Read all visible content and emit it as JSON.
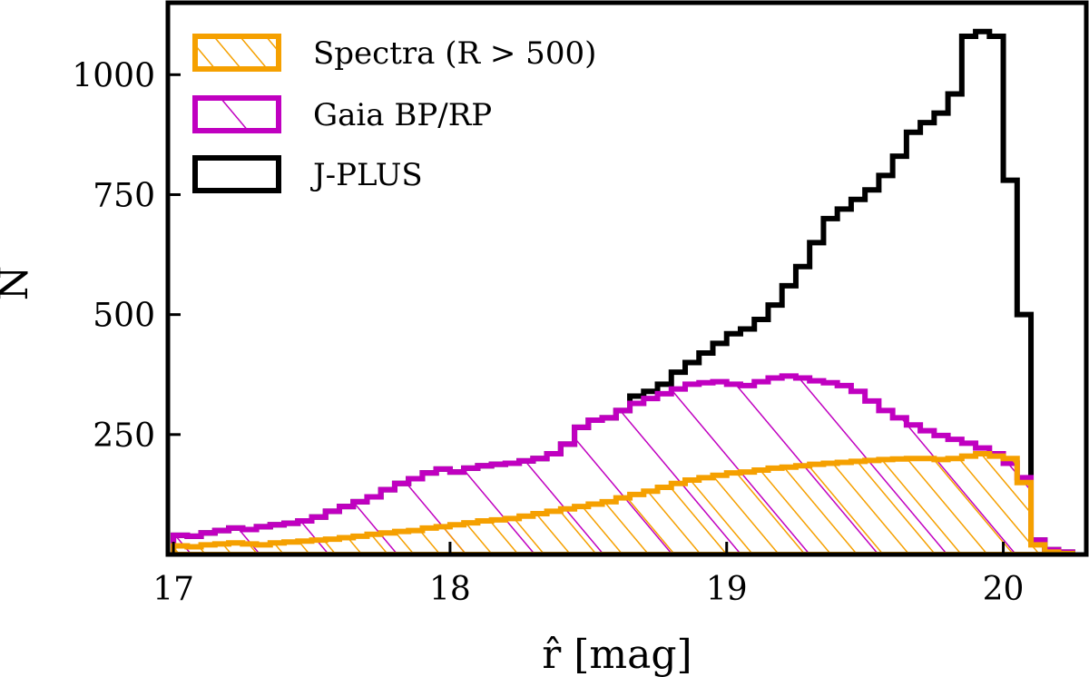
{
  "chart_data": {
    "type": "histogram",
    "xlabel": "r̂ [mag]",
    "ylabel": "N",
    "xlim": [
      16.98,
      20.3
    ],
    "ylim": [
      0,
      1150
    ],
    "xticks": [
      17,
      18,
      19,
      20
    ],
    "yticks": [
      250,
      500,
      750,
      1000
    ],
    "bin_edges": [
      17.0,
      17.05,
      17.1,
      17.15,
      17.2,
      17.25,
      17.3,
      17.35,
      17.4,
      17.45,
      17.5,
      17.55,
      17.6,
      17.65,
      17.7,
      17.75,
      17.8,
      17.85,
      17.9,
      17.95,
      18.0,
      18.05,
      18.1,
      18.15,
      18.2,
      18.25,
      18.3,
      18.35,
      18.4,
      18.45,
      18.5,
      18.55,
      18.6,
      18.65,
      18.7,
      18.75,
      18.8,
      18.85,
      18.9,
      18.95,
      19.0,
      19.05,
      19.1,
      19.15,
      19.2,
      19.25,
      19.3,
      19.35,
      19.4,
      19.45,
      19.5,
      19.55,
      19.6,
      19.65,
      19.7,
      19.75,
      19.8,
      19.85,
      19.9,
      19.95,
      20.0,
      20.05,
      20.1,
      20.15,
      20.2,
      20.25
    ],
    "series": [
      {
        "name": "J-PLUS",
        "color": "#000000",
        "hatch": false,
        "values": [
          40,
          38,
          45,
          50,
          55,
          52,
          58,
          62,
          65,
          70,
          78,
          90,
          100,
          110,
          120,
          135,
          148,
          158,
          170,
          178,
          172,
          180,
          185,
          188,
          190,
          195,
          200,
          210,
          230,
          265,
          280,
          285,
          300,
          330,
          340,
          355,
          380,
          400,
          420,
          440,
          460,
          470,
          490,
          520,
          560,
          600,
          650,
          700,
          720,
          740,
          760,
          790,
          830,
          880,
          900,
          920,
          960,
          1080,
          1090,
          1080,
          780,
          500,
          30,
          10,
          5
        ]
      },
      {
        "name": "Gaia BP/RP",
        "color": "#c000c0",
        "hatch": true,
        "values": [
          40,
          38,
          45,
          50,
          55,
          52,
          58,
          62,
          65,
          70,
          78,
          90,
          100,
          110,
          120,
          135,
          148,
          158,
          170,
          178,
          172,
          180,
          185,
          188,
          190,
          195,
          200,
          210,
          230,
          265,
          280,
          285,
          300,
          315,
          325,
          335,
          345,
          355,
          358,
          360,
          355,
          352,
          360,
          368,
          372,
          368,
          362,
          358,
          352,
          340,
          320,
          300,
          285,
          270,
          258,
          248,
          240,
          232,
          222,
          210,
          190,
          160,
          30,
          10,
          5
        ]
      },
      {
        "name": "Spectra (R > 500)",
        "color": "#f5a000",
        "hatch": true,
        "values": [
          18,
          16,
          20,
          22,
          24,
          22,
          20,
          24,
          26,
          28,
          30,
          32,
          35,
          38,
          42,
          45,
          48,
          50,
          55,
          58,
          62,
          66,
          70,
          72,
          75,
          80,
          85,
          90,
          95,
          100,
          105,
          110,
          118,
          125,
          132,
          140,
          148,
          155,
          160,
          165,
          170,
          172,
          176,
          180,
          182,
          185,
          188,
          190,
          192,
          194,
          196,
          198,
          199,
          200,
          200,
          198,
          200,
          205,
          210,
          205,
          200,
          150,
          20,
          5,
          2
        ]
      }
    ],
    "legend": {
      "placement": "top-left",
      "entries": [
        {
          "label": "Spectra (R > 500)",
          "color": "#f5a000"
        },
        {
          "label": "Gaia BP/RP",
          "color": "#c000c0"
        },
        {
          "label": "J-PLUS",
          "color": "#000000"
        }
      ]
    }
  }
}
